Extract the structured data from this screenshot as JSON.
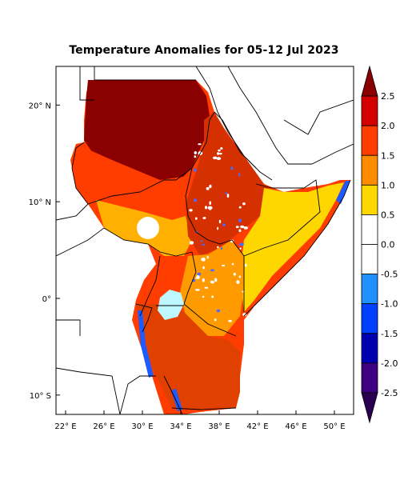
{
  "title": "Temperature Anomalies for 05-12 Jul 2023",
  "map": {
    "lon_ticks": [
      "22° E",
      "26° E",
      "30° E",
      "34° E",
      "38° E",
      "42° E",
      "46° E",
      "50° E"
    ],
    "lat_ticks": [
      "20° N",
      "10° N",
      "0°",
      "10° S"
    ],
    "lon_range": [
      21,
      52
    ],
    "lat_range": [
      -12,
      24
    ]
  },
  "colorbar": {
    "labels": [
      "2.5",
      "2.0",
      "1.5",
      "1.0",
      "0.5",
      "0.0",
      "-0.5",
      "-1.0",
      "-1.5",
      "-2.0",
      "-2.5"
    ],
    "colors": [
      "#8b0000",
      "#d40000",
      "#ff3d00",
      "#ff8c00",
      "#ffd700",
      "#ffffff",
      "#ffffff",
      "#1e90ff",
      "#0040ff",
      "#0000b0",
      "#3d0080",
      "#2b0050"
    ]
  },
  "region_colors": {
    "sahara": "#8b0000",
    "sahel": "#ff3d00",
    "south_sudan": "#ffb000",
    "ethiopia": "#d43000",
    "somalia": "#ffd700",
    "kenya": "#ff9a00",
    "tanzania": "#e04000",
    "lake_victoria": "#bff7ff",
    "coast_cool": "#1e5bff"
  }
}
